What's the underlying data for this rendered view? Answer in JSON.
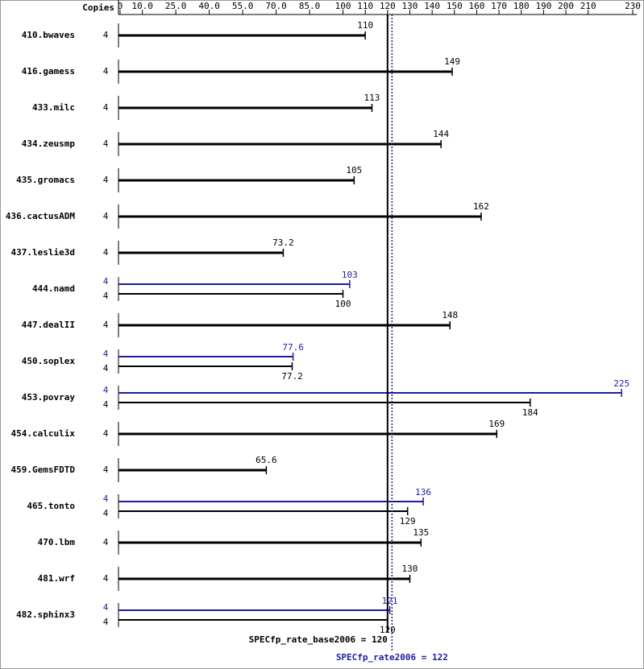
{
  "chart_data": {
    "type": "bar",
    "orientation": "horizontal",
    "copies_header": "Copies",
    "categories": [
      "410.bwaves",
      "416.gamess",
      "433.milc",
      "434.zeusmp",
      "435.gromacs",
      "436.cactusADM",
      "437.leslie3d",
      "444.namd",
      "447.dealII",
      "450.soplex",
      "453.povray",
      "454.calculix",
      "459.GemsFDTD",
      "465.tonto",
      "470.lbm",
      "481.wrf",
      "482.sphinx3"
    ],
    "copies_base": [
      4,
      4,
      4,
      4,
      4,
      4,
      4,
      4,
      4,
      4,
      4,
      4,
      4,
      4,
      4,
      4,
      4
    ],
    "copies_peak": [
      null,
      null,
      null,
      null,
      null,
      null,
      null,
      4,
      null,
      4,
      4,
      null,
      null,
      4,
      null,
      null,
      4
    ],
    "series": [
      {
        "color": "#000000",
        "values": [
          110,
          149,
          113,
          144,
          105,
          162,
          73.2,
          100,
          148,
          77.2,
          184,
          169,
          65.6,
          129,
          135,
          130,
          120
        ]
      },
      {
        "color": "#1c1c9c",
        "values": [
          null,
          null,
          null,
          null,
          null,
          null,
          null,
          103,
          null,
          77.6,
          225,
          null,
          null,
          136,
          null,
          null,
          121
        ]
      }
    ],
    "xlim": [
      0,
      230
    ],
    "xticks": [
      0,
      {
        "value": 10,
        "label": "10.0"
      },
      {
        "value": 25,
        "label": "25.0"
      },
      {
        "value": 40,
        "label": "40.0"
      },
      {
        "value": 55,
        "label": "55.0"
      },
      {
        "value": 70,
        "label": "70.0"
      },
      {
        "value": 85,
        "label": "85.0"
      },
      100,
      110,
      120,
      130,
      140,
      150,
      160,
      170,
      180,
      190,
      200,
      210,
      230
    ],
    "reference_lines": [
      {
        "label": "SPECfp_rate_base2006 = 120",
        "value": 120,
        "color": "#000000"
      },
      {
        "label": "SPECfp_rate2006 = 122",
        "value": 122,
        "color": "#1c1c9c"
      }
    ]
  }
}
